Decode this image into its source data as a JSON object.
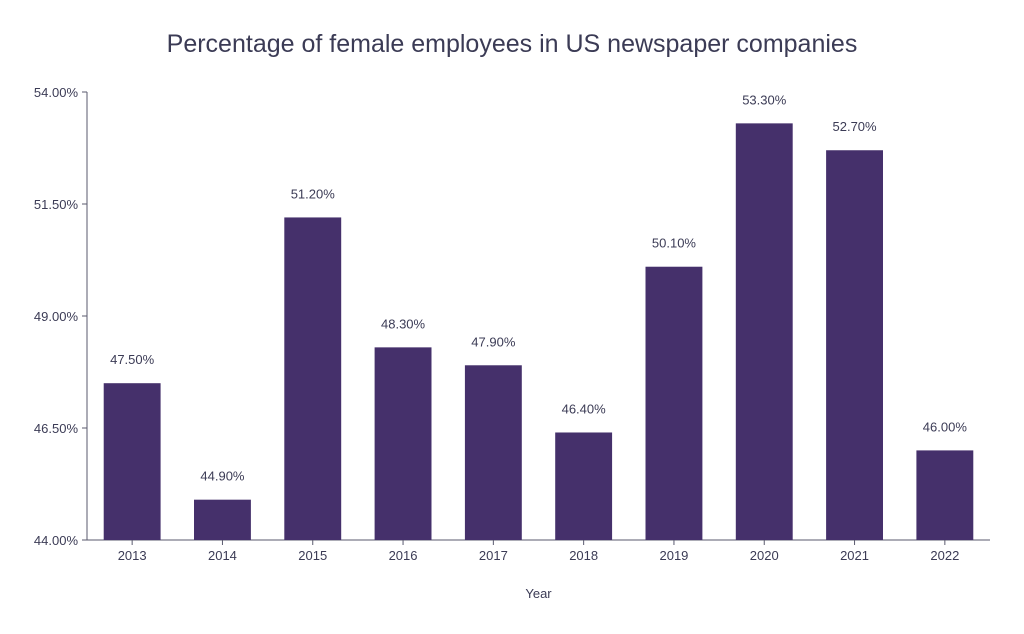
{
  "chart_data": {
    "type": "bar",
    "title": "Percentage of female employees in US newspaper companies",
    "xlabel": "Year",
    "ylabel": "",
    "categories": [
      "2013",
      "2014",
      "2015",
      "2016",
      "2017",
      "2018",
      "2019",
      "2020",
      "2021",
      "2022"
    ],
    "values": [
      47.5,
      44.9,
      51.2,
      48.3,
      47.9,
      46.4,
      50.1,
      53.3,
      52.7,
      46.0
    ],
    "value_labels": [
      "47.50%",
      "44.90%",
      "51.20%",
      "48.30%",
      "47.90%",
      "46.40%",
      "50.10%",
      "53.30%",
      "52.70%",
      "46.00%"
    ],
    "ylim": [
      44,
      54
    ],
    "yticks": [
      44,
      46.5,
      49,
      51.5,
      54
    ],
    "ytick_labels": [
      "44.00%",
      "46.50%",
      "49.00%",
      "51.50%",
      "54.00%"
    ],
    "grid": false,
    "bar_color": "#45306b"
  }
}
